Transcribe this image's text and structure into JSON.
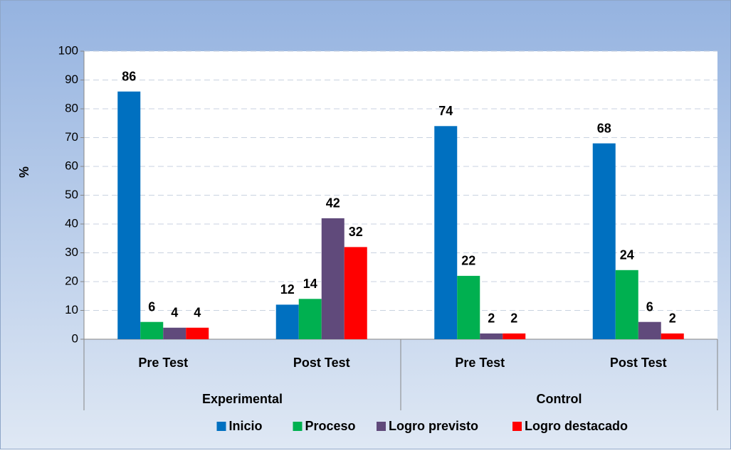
{
  "chart_data": {
    "type": "bar",
    "y_label": "%",
    "groups": [
      {
        "name": "Experimental",
        "categories": [
          "Pre Test",
          "Post Test"
        ]
      },
      {
        "name": "Control",
        "categories": [
          "Pre Test",
          "Post Test"
        ]
      }
    ],
    "series": [
      {
        "name": "Inicio",
        "color": "#0070c0",
        "values": [
          86,
          12,
          74,
          68
        ]
      },
      {
        "name": "Proceso",
        "color": "#00b050",
        "values": [
          6,
          14,
          22,
          24
        ]
      },
      {
        "name": "Logro previsto",
        "color": "#604a7b",
        "values": [
          4,
          42,
          2,
          6
        ]
      },
      {
        "name": "Logro destacado",
        "color": "#ff0000",
        "values": [
          4,
          32,
          2,
          2
        ]
      }
    ],
    "ylim": [
      0,
      100
    ],
    "yticks": [
      0,
      10,
      20,
      30,
      40,
      50,
      60,
      70,
      80,
      90,
      100
    ],
    "grid": true,
    "legend": "bottom"
  }
}
